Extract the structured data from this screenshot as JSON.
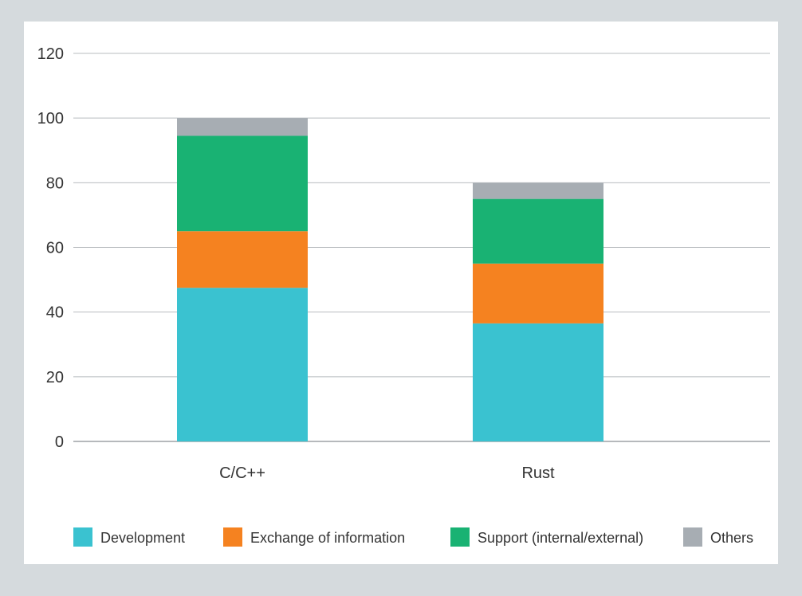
{
  "chart_data": {
    "type": "bar",
    "stacked": true,
    "categories": [
      "C/C++",
      "Rust"
    ],
    "series": [
      {
        "name": "Development",
        "values": [
          47.5,
          36.5
        ],
        "color": "#3ac2d0"
      },
      {
        "name": "Exchange of information",
        "values": [
          17.5,
          18.5
        ],
        "color": "#f58220"
      },
      {
        "name": "Support (internal/external)",
        "values": [
          29.5,
          20
        ],
        "color": "#19b273"
      },
      {
        "name": "Others",
        "values": [
          5.5,
          5
        ],
        "color": "#a7adb3"
      }
    ],
    "ylim": [
      0,
      120
    ],
    "yticks": [
      0,
      20,
      40,
      60,
      80,
      100,
      120
    ],
    "title": "",
    "xlabel": "",
    "ylabel": "",
    "grid": true,
    "legend_position": "bottom"
  }
}
